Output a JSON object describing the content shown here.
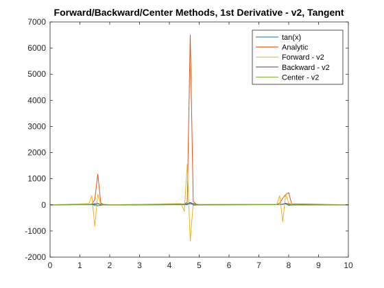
{
  "chart_data": {
    "type": "line",
    "title": "Forward/Backward/Center Methods, 1st Derivative - v2, Tangent",
    "xlabel": "",
    "ylabel": "",
    "xlim": [
      0,
      10
    ],
    "ylim": [
      -2000,
      7000
    ],
    "x_ticks": [
      "0",
      "1",
      "2",
      "3",
      "4",
      "5",
      "6",
      "7",
      "8",
      "9",
      "10"
    ],
    "y_ticks": [
      "-2000",
      "-1000",
      "0",
      "1000",
      "2000",
      "3000",
      "4000",
      "5000",
      "6000",
      "7000"
    ],
    "grid": false,
    "legend_position": "top-right",
    "series": [
      {
        "name": "tan(x)",
        "color": "#0072BD",
        "x": [
          0,
          1.3,
          1.4,
          1.5,
          1.6,
          1.7,
          1.8,
          2.0,
          4.5,
          4.6,
          4.7,
          4.8,
          4.9,
          5.0,
          7.7,
          7.8,
          7.9,
          8.0,
          8.1,
          10
        ],
        "y": [
          0,
          4,
          6,
          14,
          -34,
          -8,
          -4,
          -2,
          5,
          9,
          80,
          -11,
          -5,
          -3,
          9,
          16,
          40,
          -17,
          -6,
          1
        ]
      },
      {
        "name": "Analytic",
        "color": "#D95319",
        "x": [
          0,
          1.3,
          1.4,
          1.5,
          1.6,
          1.7,
          1.8,
          2.0,
          4.4,
          4.5,
          4.6,
          4.7,
          4.8,
          4.9,
          5.0,
          7.6,
          7.7,
          7.8,
          7.9,
          8.0,
          8.1,
          10
        ],
        "y": [
          1,
          15,
          35,
          200,
          1180,
          70,
          20,
          5,
          25,
          40,
          100,
          6500,
          130,
          30,
          15,
          20,
          70,
          250,
          400,
          470,
          40,
          1
        ]
      },
      {
        "name": "Forward - v2",
        "color": "#EDB120",
        "x": [
          0,
          1.3,
          1.4,
          1.5,
          1.6,
          1.7,
          1.8,
          2.0,
          4.4,
          4.5,
          4.6,
          4.7,
          4.8,
          4.9,
          5.0,
          7.6,
          7.7,
          7.8,
          7.9,
          8.0,
          8.1,
          10
        ],
        "y": [
          0,
          50,
          350,
          -820,
          400,
          30,
          10,
          2,
          50,
          -250,
          1550,
          -1390,
          60,
          20,
          5,
          20,
          350,
          -640,
          410,
          60,
          10,
          0
        ]
      },
      {
        "name": "Backward - v2",
        "color": "#7E2F8E",
        "x": [
          0,
          1.3,
          1.4,
          1.5,
          1.6,
          1.7,
          2.0,
          4.5,
          4.6,
          4.7,
          4.8,
          4.9,
          5.0,
          7.7,
          7.8,
          7.9,
          8.0,
          8.1,
          10
        ],
        "y": [
          0,
          10,
          25,
          45,
          40,
          10,
          2,
          10,
          40,
          90,
          40,
          15,
          5,
          10,
          30,
          60,
          30,
          5,
          0
        ]
      },
      {
        "name": "Center - v2",
        "color": "#77AC30",
        "x": [
          0,
          1.3,
          1.4,
          1.5,
          1.6,
          1.7,
          1.8,
          2.0,
          4.5,
          4.6,
          4.7,
          4.8,
          4.9,
          5.0,
          7.7,
          7.8,
          7.9,
          8.0,
          8.1,
          10
        ],
        "y": [
          0,
          10,
          20,
          -30,
          60,
          20,
          5,
          0,
          15,
          60,
          30,
          20,
          5,
          0,
          10,
          40,
          30,
          10,
          0,
          0
        ]
      }
    ]
  }
}
